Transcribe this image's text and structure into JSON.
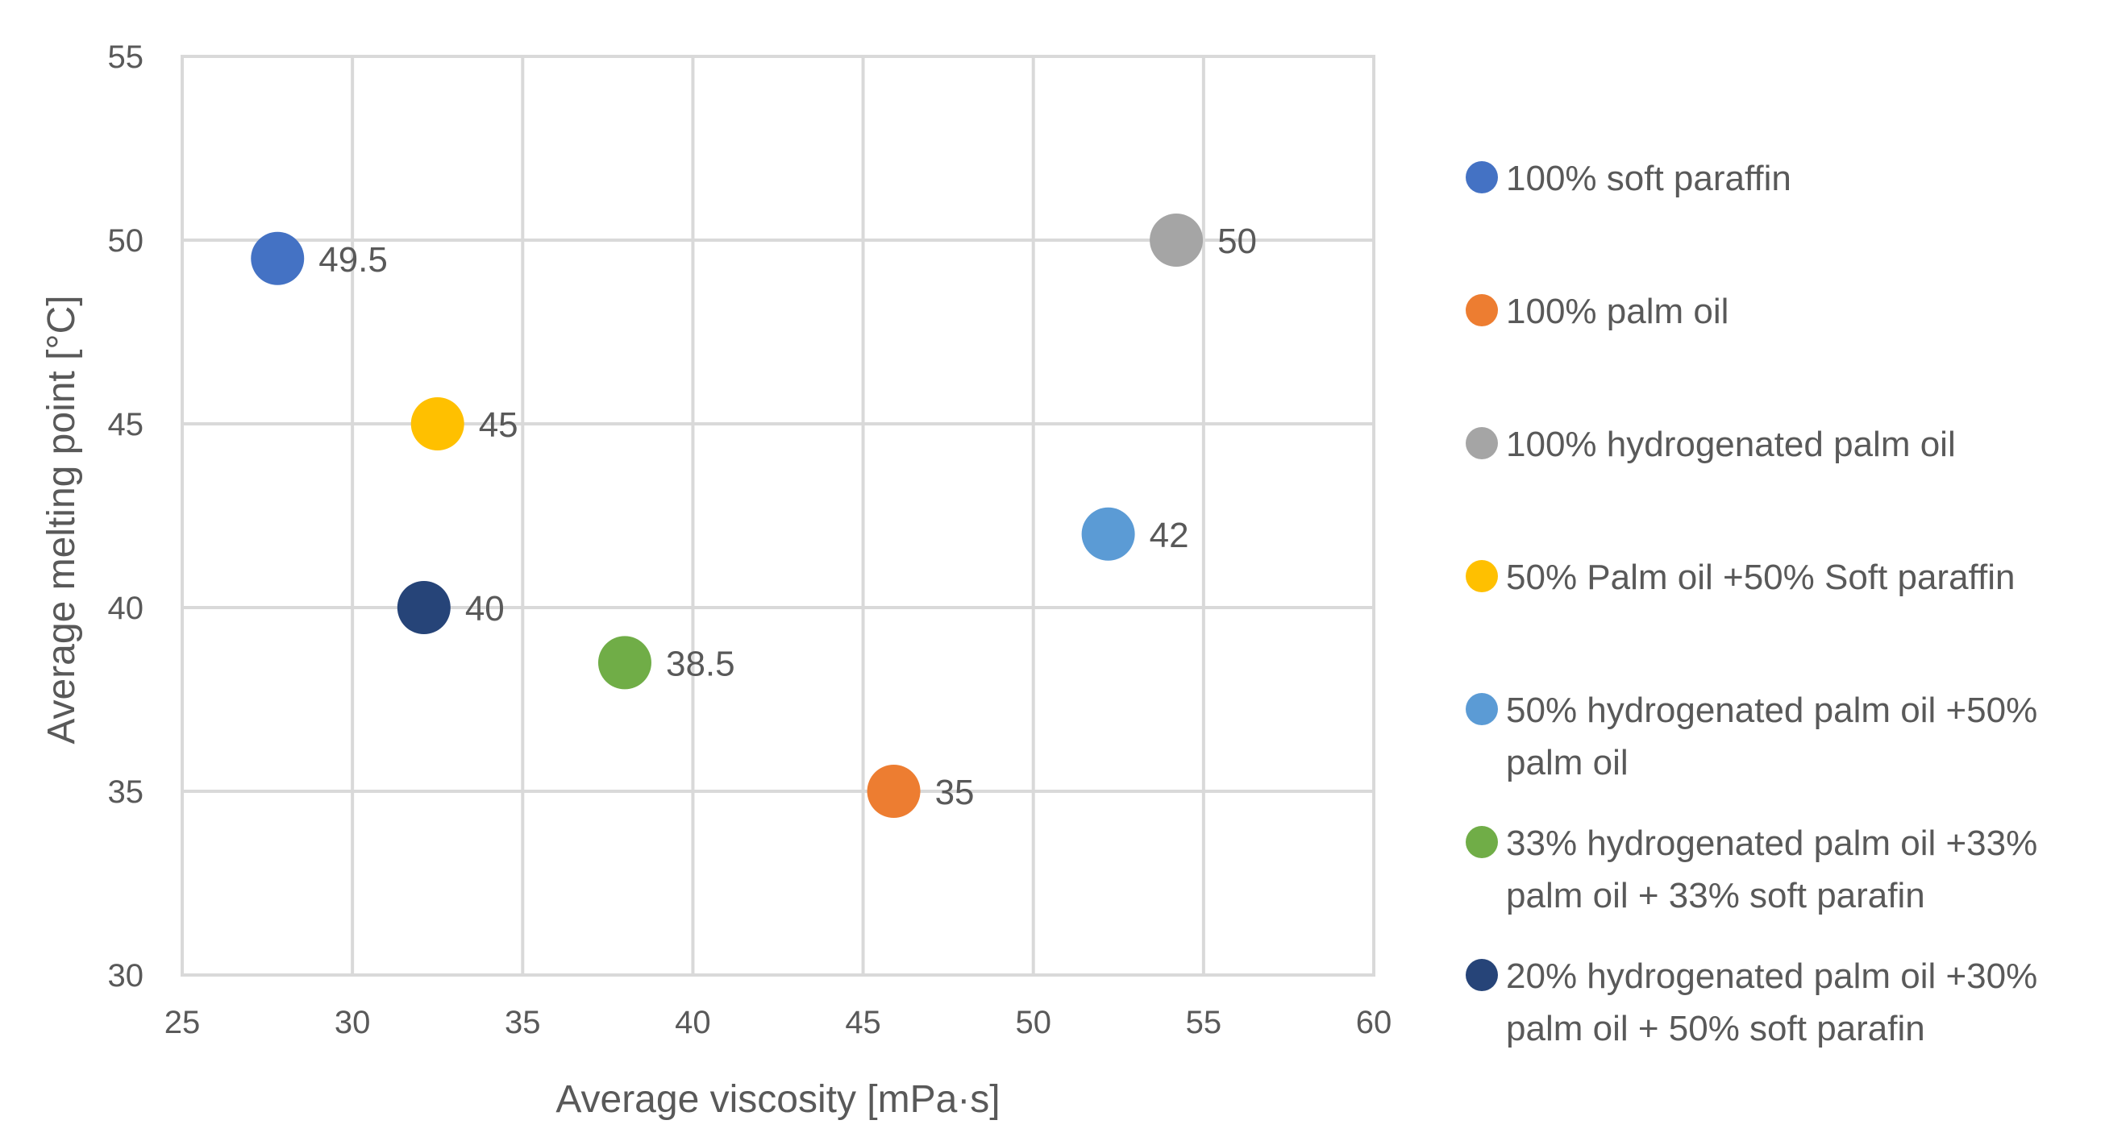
{
  "chart_data": {
    "type": "scatter",
    "title": "",
    "xlabel": "Average viscosity [mPa·s]",
    "ylabel": "Average melting point [°C]",
    "xlim": [
      25,
      60
    ],
    "ylim": [
      30,
      55
    ],
    "xticks": [
      25,
      30,
      35,
      40,
      45,
      50,
      55,
      60
    ],
    "yticks": [
      30,
      35,
      40,
      45,
      50,
      55
    ],
    "grid": true,
    "legend_position": "right",
    "series": [
      {
        "name": "100% soft paraffin",
        "color": "#4472C4",
        "x": 27.8,
        "y": 49.5,
        "label": "49.5"
      },
      {
        "name": "100% palm oil",
        "color": "#ED7D31",
        "x": 45.9,
        "y": 35,
        "label": "35"
      },
      {
        "name": "100% hydrogenated palm oil",
        "color": "#A5A5A5",
        "x": 54.2,
        "y": 50,
        "label": "50"
      },
      {
        "name": "50% Palm oil  +50% Soft paraffin",
        "color": "#FFC000",
        "x": 32.5,
        "y": 45,
        "label": "45"
      },
      {
        "name": "50% hydrogenated palm oil  +50% palm oil",
        "legend_lines": [
          "50% hydrogenated palm oil  +50%",
          "palm oil"
        ],
        "color": "#5B9BD5",
        "x": 52.2,
        "y": 42,
        "label": "42"
      },
      {
        "name": "33% hydrogenated palm oil +33% palm oil + 33% soft parafin",
        "legend_lines": [
          "33% hydrogenated palm oil +33%",
          "palm oil + 33% soft parafin"
        ],
        "color": "#70AD47",
        "x": 38,
        "y": 38.5,
        "label": "38.5"
      },
      {
        "name": "20% hydrogenated palm oil  +30% palm oil + 50% soft parafin",
        "legend_lines": [
          "20% hydrogenated palm oil  +30%",
          "palm oil + 50% soft parafin"
        ],
        "color": "#264478",
        "x": 32.1,
        "y": 40,
        "label": "40"
      }
    ]
  }
}
